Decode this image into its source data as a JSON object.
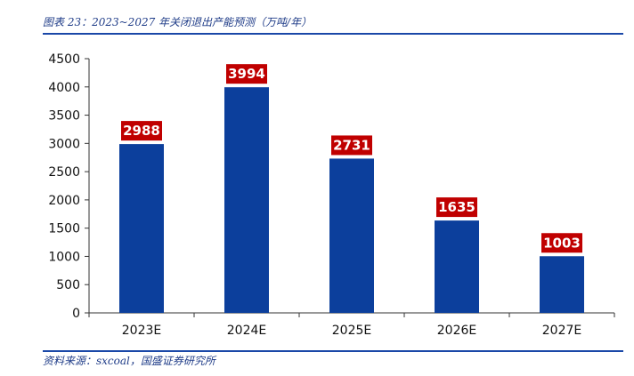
{
  "header": {
    "title": "图表 23：2023~2027 年关闭退出产能预测（万吨/年）"
  },
  "footer": {
    "source": "资料来源：sxcoal，国盛证券研究所"
  },
  "chart_data": {
    "type": "bar",
    "categories": [
      "2023E",
      "2024E",
      "2025E",
      "2026E",
      "2027E"
    ],
    "values": [
      2988,
      3994,
      2731,
      1635,
      1003
    ],
    "ylim": [
      0,
      4500
    ],
    "yticks": [
      0,
      500,
      1000,
      1500,
      2000,
      2500,
      3000,
      3500,
      4000,
      4500
    ],
    "grid": false,
    "colors": {
      "bar": "#0c3f9c",
      "label_bg": "#c00000",
      "axis": "#333333"
    }
  }
}
